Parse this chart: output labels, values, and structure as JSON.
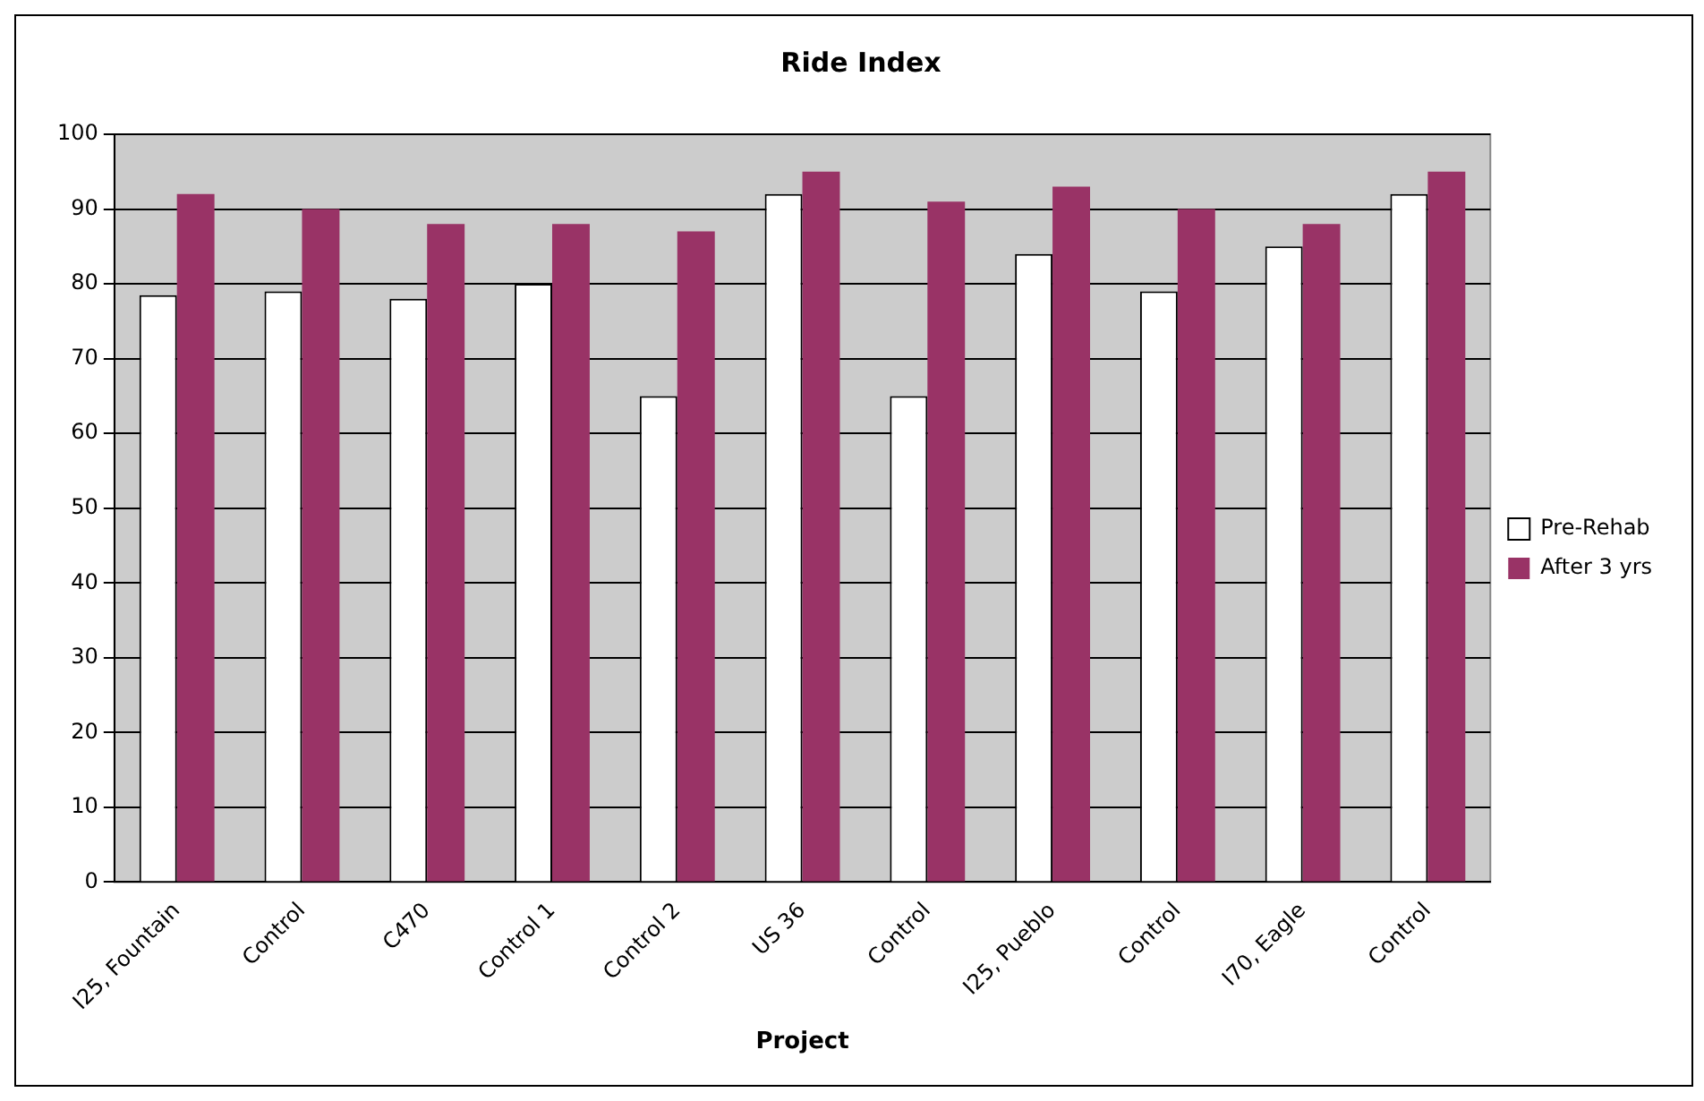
{
  "chart_data": {
    "type": "bar",
    "title": "Ride Index",
    "xlabel": "Project",
    "categories": [
      "I25, Fountain",
      "Control",
      "C470",
      "Control 1",
      "Control 2",
      "US 36",
      "Control",
      "I25, Pueblo",
      "Control",
      "I70, Eagle",
      "Control"
    ],
    "series": [
      {
        "name": "Pre-Rehab",
        "color": "#ffffff",
        "values": [
          78.5,
          79,
          78,
          80,
          65,
          92,
          65,
          84,
          79,
          85,
          92
        ]
      },
      {
        "name": "After 3 yrs",
        "color": "#993366",
        "values": [
          92,
          90,
          88,
          88,
          87,
          95,
          91,
          93,
          90,
          88,
          95
        ]
      }
    ],
    "ylim": [
      0,
      100
    ],
    "yticks": [
      0,
      10,
      20,
      30,
      40,
      50,
      60,
      70,
      80,
      90,
      100
    ],
    "grid": "y",
    "legend": "right"
  }
}
